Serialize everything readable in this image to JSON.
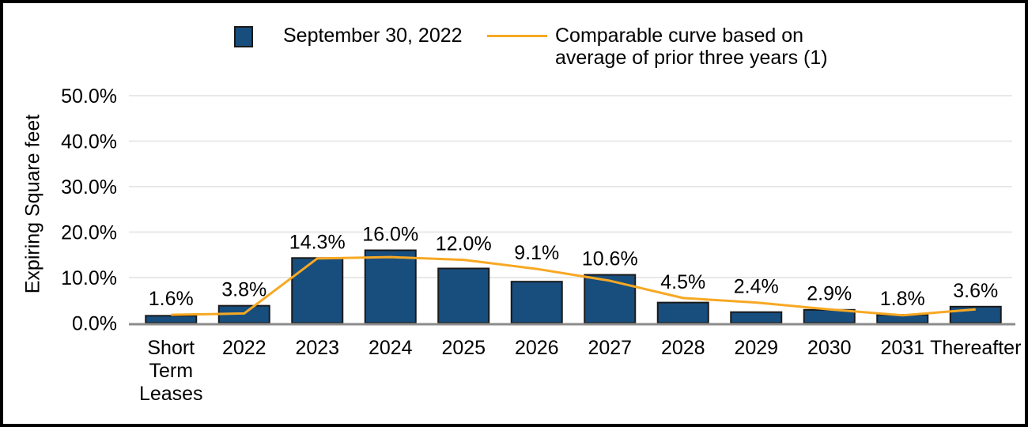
{
  "frame": {
    "border_color": "#000000",
    "background_color": "#ffffff"
  },
  "legend": {
    "bar_label": "September 30, 2022",
    "line_label": "Comparable curve based on average of prior three years (1)"
  },
  "chart_data": {
    "type": "bar",
    "title": "",
    "xlabel": "",
    "ylabel": "Expiring Square feet",
    "categories": [
      "Short Term Leases",
      "2022",
      "2023",
      "2024",
      "2025",
      "2026",
      "2027",
      "2028",
      "2029",
      "2030",
      "2031",
      "Thereafter"
    ],
    "series": [
      {
        "name": "September 30, 2022",
        "type": "bar",
        "color": "#174E7E",
        "border_color": "#1a1a1a",
        "values": [
          1.6,
          3.8,
          14.3,
          16.0,
          12.0,
          9.1,
          10.6,
          4.5,
          2.4,
          2.9,
          1.8,
          3.6
        ],
        "value_labels": [
          "1.6%",
          "3.8%",
          "14.3%",
          "16.0%",
          "12.0%",
          "9.1%",
          "10.6%",
          "4.5%",
          "2.4%",
          "2.9%",
          "1.8%",
          "3.6%"
        ]
      },
      {
        "name": "Comparable curve based on average of prior three years (1)",
        "type": "line",
        "color": "#F7A823",
        "values": [
          1.8,
          2.1,
          14.2,
          14.5,
          13.9,
          11.9,
          9.3,
          5.5,
          4.5,
          3.0,
          1.7,
          3.0
        ]
      }
    ],
    "yticks": [
      {
        "value": 0,
        "label": "0.0%"
      },
      {
        "value": 10,
        "label": "10.0%"
      },
      {
        "value": 20,
        "label": "20.0%"
      },
      {
        "value": 30,
        "label": "30.0%"
      },
      {
        "value": 40,
        "label": "40.0%"
      },
      {
        "value": 50,
        "label": "50.0%"
      }
    ],
    "ylim": [
      0,
      50
    ],
    "grid": true,
    "grid_color": "#E8E8E8",
    "axis_color": "#8C8C8C",
    "text_color": "#000000",
    "legend_position": "top"
  }
}
